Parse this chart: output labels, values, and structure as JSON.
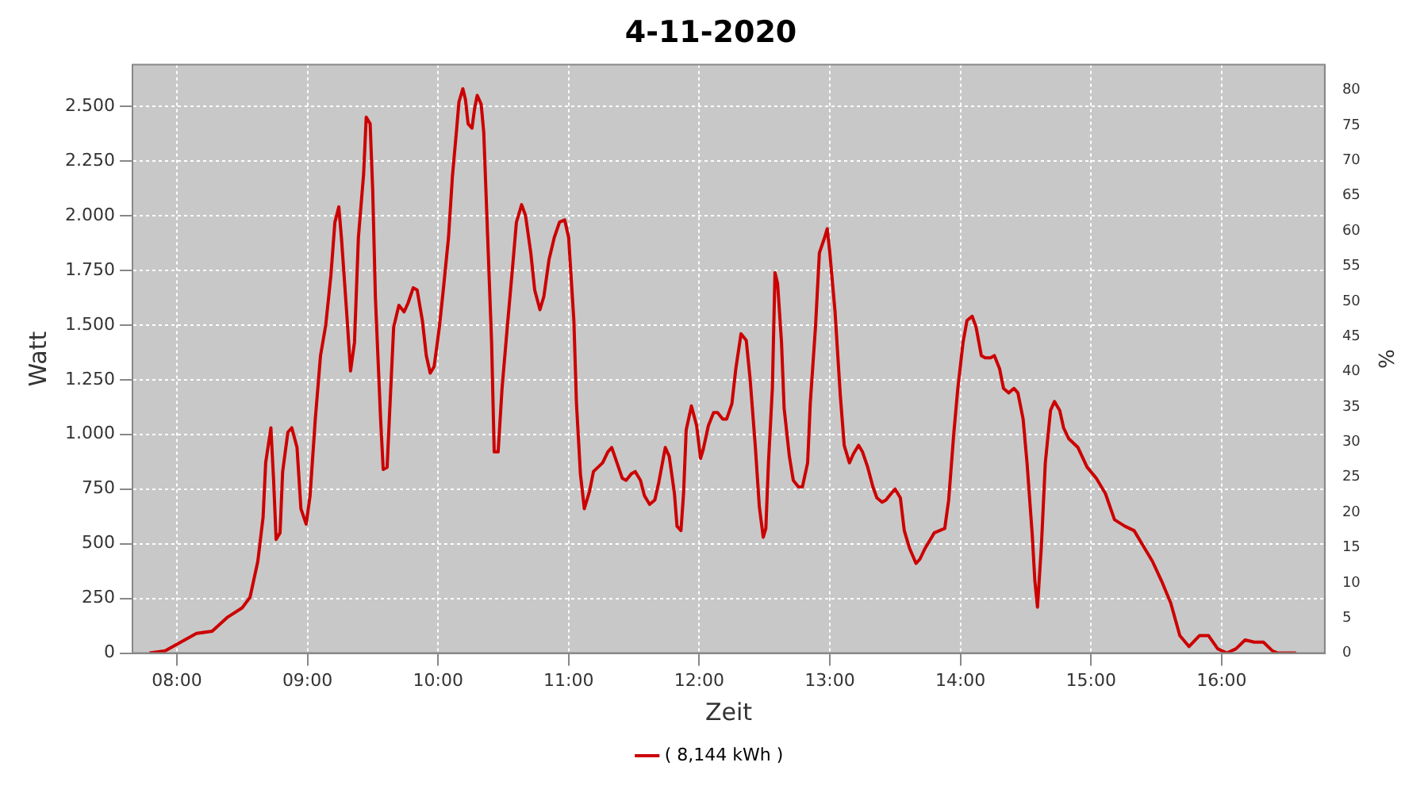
{
  "chart_data": {
    "type": "line",
    "title": "4-11-2020",
    "xlabel": "Zeit",
    "ylabel": "Watt",
    "y2label": "%",
    "x": [
      7.79,
      7.91,
      8.03,
      8.15,
      8.27,
      8.39,
      8.5,
      8.56,
      8.62,
      8.66,
      8.68,
      8.72,
      8.74,
      8.76,
      8.79,
      8.81,
      8.85,
      8.88,
      8.92,
      8.95,
      8.99,
      9.02,
      9.06,
      9.1,
      9.14,
      9.18,
      9.21,
      9.24,
      9.26,
      9.3,
      9.33,
      9.36,
      9.39,
      9.43,
      9.45,
      9.48,
      9.5,
      9.52,
      9.56,
      9.58,
      9.61,
      9.63,
      9.66,
      9.7,
      9.74,
      9.77,
      9.81,
      9.84,
      9.88,
      9.91,
      9.94,
      9.97,
      10.01,
      10.04,
      10.08,
      10.11,
      10.14,
      10.16,
      10.19,
      10.21,
      10.23,
      10.26,
      10.28,
      10.3,
      10.33,
      10.35,
      10.38,
      10.41,
      10.43,
      10.46,
      10.49,
      10.53,
      10.57,
      10.6,
      10.64,
      10.67,
      10.71,
      10.74,
      10.78,
      10.81,
      10.85,
      10.89,
      10.93,
      10.97,
      11.0,
      11.04,
      11.06,
      11.09,
      11.12,
      11.16,
      11.19,
      11.26,
      11.3,
      11.33,
      11.37,
      11.41,
      11.44,
      11.48,
      11.51,
      11.55,
      11.58,
      11.62,
      11.66,
      11.69,
      11.74,
      11.77,
      11.81,
      11.83,
      11.86,
      11.88,
      11.9,
      11.94,
      11.98,
      12.01,
      12.03,
      12.07,
      12.11,
      12.14,
      12.18,
      12.21,
      12.25,
      12.28,
      12.32,
      12.36,
      12.39,
      12.43,
      12.46,
      12.49,
      12.51,
      12.53,
      12.56,
      12.58,
      12.6,
      12.63,
      12.65,
      12.69,
      12.72,
      12.76,
      12.79,
      12.83,
      12.85,
      12.89,
      12.92,
      12.96,
      12.98,
      13.0,
      13.04,
      13.08,
      13.11,
      13.15,
      13.18,
      13.22,
      13.25,
      13.29,
      13.33,
      13.36,
      13.4,
      13.43,
      13.47,
      13.5,
      13.54,
      13.57,
      13.61,
      13.66,
      13.69,
      13.73,
      13.77,
      13.8,
      13.84,
      13.88,
      13.91,
      13.95,
      13.98,
      14.02,
      14.05,
      14.09,
      14.12,
      14.16,
      14.19,
      14.23,
      14.26,
      14.3,
      14.33,
      14.37,
      14.41,
      14.44,
      14.48,
      14.51,
      14.55,
      14.57,
      14.59,
      14.62,
      14.65,
      14.69,
      14.72,
      14.76,
      14.79,
      14.83,
      14.9,
      14.97,
      15.04,
      15.11,
      15.18,
      15.26,
      15.33,
      15.4,
      15.47,
      15.54,
      15.61,
      15.68,
      15.75,
      15.83,
      15.9,
      15.97,
      16.04,
      16.11,
      16.18,
      16.25,
      16.32,
      16.39,
      16.43,
      16.57
    ],
    "series": [
      {
        "name": "( 8,144 kWh )",
        "color": "#cc0000",
        "values": [
          0,
          10,
          50,
          90,
          100,
          165,
          207,
          255,
          420,
          620,
          870,
          1030,
          800,
          520,
          550,
          830,
          1010,
          1030,
          940,
          660,
          590,
          720,
          1070,
          1360,
          1500,
          1730,
          1970,
          2040,
          1900,
          1560,
          1290,
          1420,
          1900,
          2190,
          2450,
          2420,
          2110,
          1630,
          1070,
          840,
          850,
          1110,
          1490,
          1590,
          1560,
          1600,
          1670,
          1660,
          1520,
          1360,
          1280,
          1310,
          1490,
          1660,
          1900,
          2180,
          2380,
          2520,
          2580,
          2530,
          2420,
          2400,
          2490,
          2550,
          2510,
          2380,
          1900,
          1420,
          920,
          920,
          1210,
          1490,
          1760,
          1970,
          2050,
          2000,
          1830,
          1660,
          1570,
          1630,
          1800,
          1900,
          1970,
          1980,
          1900,
          1520,
          1140,
          820,
          660,
          740,
          830,
          870,
          920,
          940,
          870,
          800,
          790,
          820,
          830,
          790,
          720,
          680,
          700,
          780,
          940,
          900,
          730,
          580,
          560,
          730,
          1020,
          1130,
          1040,
          890,
          930,
          1040,
          1100,
          1100,
          1070,
          1070,
          1140,
          1300,
          1460,
          1430,
          1250,
          940,
          670,
          530,
          570,
          870,
          1210,
          1740,
          1690,
          1420,
          1120,
          900,
          790,
          760,
          760,
          870,
          1140,
          1490,
          1830,
          1900,
          1940,
          1830,
          1560,
          1180,
          950,
          870,
          910,
          950,
          920,
          850,
          760,
          710,
          690,
          700,
          730,
          750,
          710,
          560,
          480,
          410,
          430,
          480,
          520,
          550,
          560,
          570,
          700,
          1010,
          1210,
          1420,
          1520,
          1540,
          1490,
          1360,
          1350,
          1350,
          1360,
          1300,
          1210,
          1190,
          1210,
          1190,
          1070,
          870,
          540,
          330,
          210,
          490,
          870,
          1110,
          1150,
          1110,
          1030,
          980,
          940,
          850,
          800,
          730,
          610,
          580,
          560,
          490,
          420,
          330,
          230,
          80,
          30,
          80,
          80,
          20,
          0,
          20,
          60,
          50,
          50,
          10,
          0,
          0
        ]
      }
    ],
    "xlim": [
      7.66,
      16.79
    ],
    "xticks": [
      {
        "value": 8,
        "label": "08:00"
      },
      {
        "value": 9,
        "label": "09:00"
      },
      {
        "value": 10,
        "label": "10:00"
      },
      {
        "value": 11,
        "label": "11:00"
      },
      {
        "value": 12,
        "label": "12:00"
      },
      {
        "value": 13,
        "label": "13:00"
      },
      {
        "value": 14,
        "label": "14:00"
      },
      {
        "value": 15,
        "label": "15:00"
      },
      {
        "value": 16,
        "label": "16:00"
      }
    ],
    "ylim": [
      0,
      2690
    ],
    "yticks": [
      0,
      250,
      500,
      750,
      {
        "value": 1000,
        "label": "1.000"
      },
      {
        "value": 1250,
        "label": "1.250"
      },
      {
        "value": 1500,
        "label": "1.500"
      },
      {
        "value": 1750,
        "label": "1.750"
      },
      {
        "value": 2000,
        "label": "2.000"
      },
      {
        "value": 2250,
        "label": "2.250"
      },
      {
        "value": 2500,
        "label": "2.500"
      }
    ],
    "y2lim": [
      0,
      83.6
    ],
    "y2ticks": [
      0,
      5,
      10,
      15,
      20,
      25,
      30,
      35,
      40,
      45,
      50,
      55,
      60,
      65,
      70,
      75,
      80
    ],
    "grid": true,
    "legend": "bottom",
    "marker": "none",
    "line_style": "solid"
  }
}
